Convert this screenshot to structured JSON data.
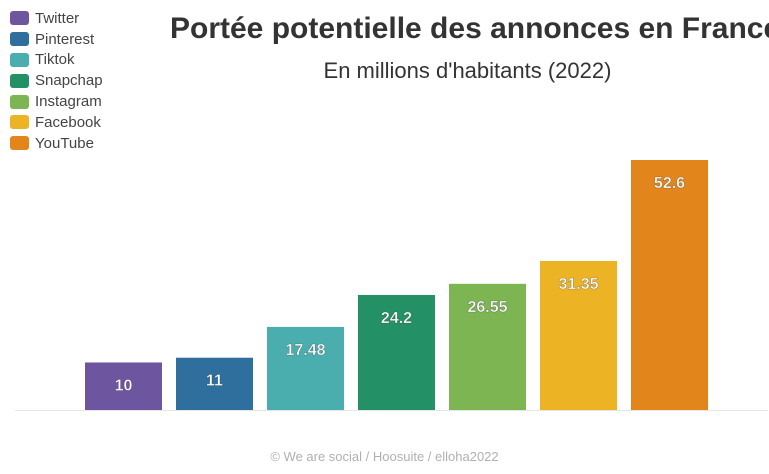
{
  "chart_data": {
    "type": "bar",
    "title": "Portée potentielle des annonces en France",
    "subtitle": "En millions d'habitants (2022)",
    "categories": [
      "Twitter",
      "Pinterest",
      "Tiktok",
      "Snapchap",
      "Instagram",
      "Facebook",
      "YouTube"
    ],
    "values": [
      10,
      11,
      17.48,
      24.2,
      26.55,
      31.35,
      52.6
    ],
    "value_labels": [
      "10",
      "11",
      "17.48",
      "24.2",
      "26.55",
      "31.35",
      "52.6"
    ],
    "colors": [
      "#6e55a0",
      "#2f6f9e",
      "#4aaeae",
      "#239165",
      "#7db553",
      "#ecb325",
      "#e2861c"
    ],
    "ylim": [
      0,
      55
    ],
    "legend_position": "top-left",
    "grid": false
  },
  "footer": {
    "source": "© We are social / Hoosuite / elloha2022"
  }
}
